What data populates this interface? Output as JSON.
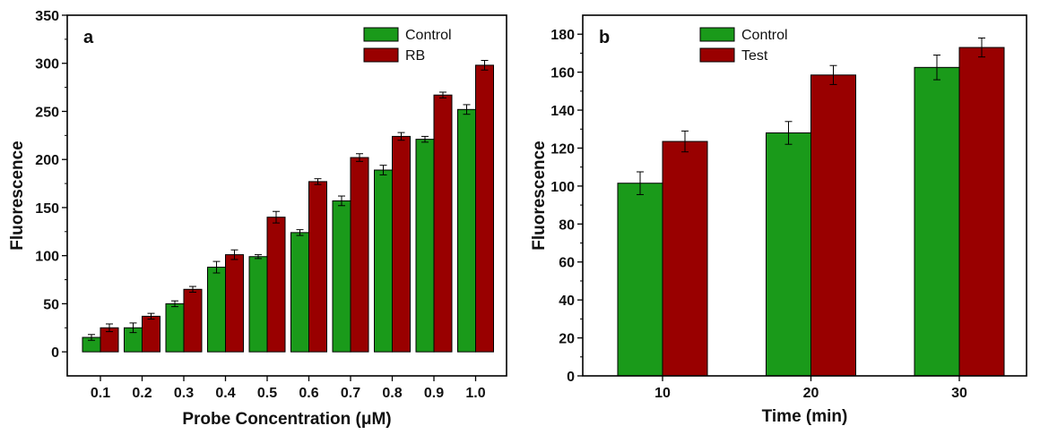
{
  "chart_data": [
    {
      "panel": "a",
      "type": "bar",
      "xlabel": "Probe Concentration (μM)",
      "ylabel": "Fluorescence",
      "ylim": [
        -25,
        350
      ],
      "yticks": [
        0,
        50,
        100,
        150,
        200,
        250,
        300,
        350
      ],
      "categories": [
        "0.1",
        "0.2",
        "0.3",
        "0.4",
        "0.5",
        "0.6",
        "0.7",
        "0.8",
        "0.9",
        "1.0"
      ],
      "series": [
        {
          "name": "Control",
          "color": "#1a9a1a",
          "values": [
            15,
            25,
            50,
            88,
            99,
            124,
            157,
            189,
            221,
            252
          ],
          "errors": [
            3,
            5,
            3,
            6,
            2,
            3,
            5,
            5,
            3,
            5
          ]
        },
        {
          "name": "RB",
          "color": "#990000",
          "values": [
            25,
            37,
            65,
            101,
            140,
            177,
            202,
            224,
            267,
            298
          ],
          "errors": [
            4,
            3,
            3,
            5,
            6,
            3,
            4,
            4,
            3,
            5
          ]
        }
      ],
      "legend": "top-right"
    },
    {
      "panel": "b",
      "type": "bar",
      "xlabel": "Time (min)",
      "ylabel": "Fluorescence",
      "ylim": [
        0,
        190
      ],
      "yticks": [
        0,
        20,
        40,
        60,
        80,
        100,
        120,
        140,
        160,
        180
      ],
      "categories": [
        "10",
        "20",
        "30"
      ],
      "series": [
        {
          "name": "Control",
          "color": "#1a9a1a",
          "values": [
            101.5,
            128,
            162.5
          ],
          "errors": [
            6,
            6,
            6.5
          ]
        },
        {
          "name": "Test",
          "color": "#990000",
          "values": [
            123.5,
            158.5,
            173
          ],
          "errors": [
            5.5,
            5,
            5
          ]
        }
      ],
      "legend": "top-left"
    }
  ]
}
